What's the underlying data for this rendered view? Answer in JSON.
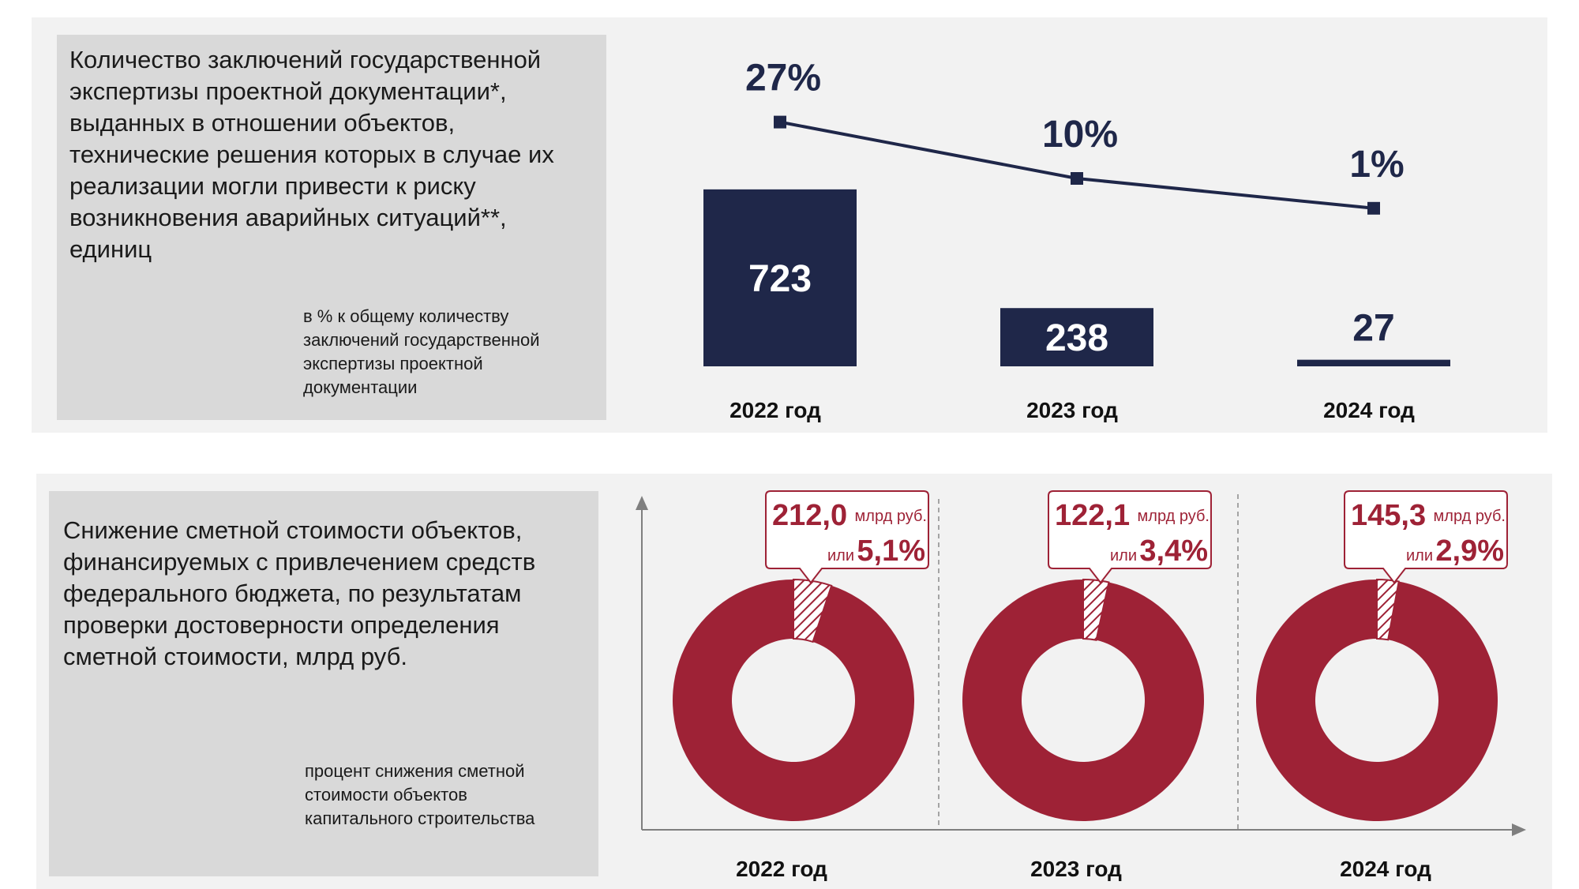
{
  "colors": {
    "navy": "#1f2749",
    "crimson": "#9e2236",
    "panel": "#f2f2f2",
    "box": "#d9d9d9"
  },
  "top": {
    "title": "Количество заключений государственной экспертизы проектной документации*, выданных в отношении объектов, технические решения которых в случае их реализации могли привести к риску возникновения аварийных ситуаций**, единиц",
    "note": "в % к общему количеству заключений государственной экспертизы проектной документации"
  },
  "bottom": {
    "title": "Снижение сметной стоимости объектов, финансируемых с привлечением средств федерального бюджета, по результатам проверки достоверности определения сметной стоимости, млрд руб.",
    "note": "процент снижения сметной стоимости объектов капитального строительства"
  },
  "chart_data": [
    {
      "type": "bar",
      "categories": [
        "2022 год",
        "2023 год",
        "2024 год"
      ],
      "series": [
        {
          "values": [
            723,
            238,
            27
          ],
          "labels": [
            "723",
            "238",
            "27"
          ]
        },
        {
          "type": "line",
          "values": [
            27,
            10,
            1
          ],
          "labels": [
            "27%",
            "10%",
            "1%"
          ]
        }
      ]
    },
    {
      "type": "pie",
      "categories": [
        "2022 год",
        "2023 год",
        "2024 год"
      ],
      "values": [
        212.0,
        122.1,
        145.3
      ],
      "value_labels": [
        "212,0",
        "122,1",
        "145,3"
      ],
      "percents": [
        5.1,
        3.4,
        2.9
      ],
      "percent_labels": [
        "5,1%",
        "3,4%",
        "2,9%"
      ],
      "unit": "млрд руб.",
      "connector": "или"
    }
  ]
}
